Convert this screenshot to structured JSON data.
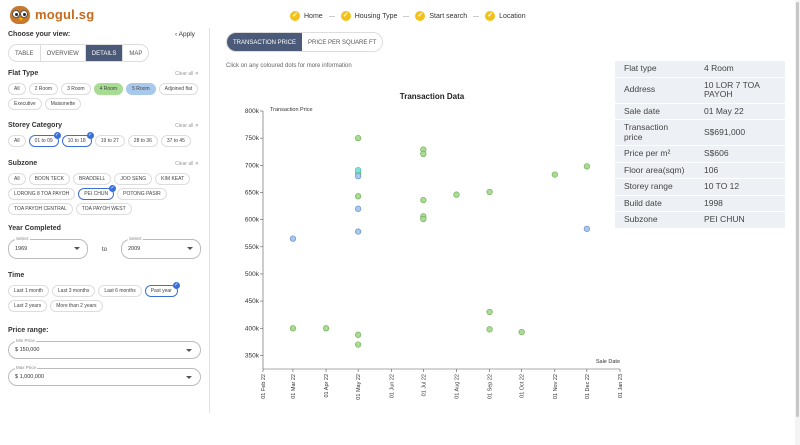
{
  "header": {
    "logo_text": "mogul.sg",
    "steps": [
      {
        "label": "Home"
      },
      {
        "label": "Housing Type"
      },
      {
        "label": "Start search"
      },
      {
        "label": "Location"
      }
    ]
  },
  "sidebar": {
    "title": "Choose your view:",
    "apply_label": "Apply",
    "view_tabs": [
      "TABLE",
      "OVERVIEW",
      "DETAILS",
      "MAP"
    ],
    "active_view": "DETAILS",
    "clear_label": "Clear all",
    "flat_type": {
      "title": "Flat Type",
      "chips": [
        {
          "label": "All",
          "state": ""
        },
        {
          "label": "2 Room",
          "state": ""
        },
        {
          "label": "3 Room",
          "state": ""
        },
        {
          "label": "4 Room",
          "state": "green"
        },
        {
          "label": "5 Room",
          "state": "blue"
        },
        {
          "label": "Adjoined flat",
          "state": ""
        },
        {
          "label": "Executive",
          "state": ""
        },
        {
          "label": "Maisonette",
          "state": ""
        }
      ]
    },
    "storey": {
      "title": "Storey Category",
      "chips": [
        {
          "label": "All",
          "state": ""
        },
        {
          "label": "01 to 09",
          "state": "sel"
        },
        {
          "label": "10 to 18",
          "state": "sel"
        },
        {
          "label": "19 to 27",
          "state": ""
        },
        {
          "label": "28 to 36",
          "state": ""
        },
        {
          "label": "37 to 45",
          "state": ""
        }
      ]
    },
    "subzone": {
      "title": "Subzone",
      "chips": [
        {
          "label": "All",
          "state": ""
        },
        {
          "label": "BOON TECK",
          "state": ""
        },
        {
          "label": "BRADDELL",
          "state": ""
        },
        {
          "label": "JOO SENG",
          "state": ""
        },
        {
          "label": "KIM KEAT",
          "state": ""
        },
        {
          "label": "LORONG 8 TOA PAYOH",
          "state": ""
        },
        {
          "label": "PEI CHUN",
          "state": "sel"
        },
        {
          "label": "POTONG PASIR",
          "state": ""
        },
        {
          "label": "TOA PAYOH CENTRAL",
          "state": ""
        },
        {
          "label": "TOA PAYOH WEST",
          "state": ""
        }
      ]
    },
    "year": {
      "title": "Year Completed",
      "select_label": "Select",
      "from": "1969",
      "to_word": "to",
      "to": "2009"
    },
    "time": {
      "title": "Time",
      "chips": [
        {
          "label": "Last 1 month",
          "state": ""
        },
        {
          "label": "Last 3 months",
          "state": ""
        },
        {
          "label": "Last 6 months",
          "state": ""
        },
        {
          "label": "Past year",
          "state": "sel"
        },
        {
          "label": "Last 2 years",
          "state": ""
        },
        {
          "label": "More than 2 years",
          "state": ""
        }
      ]
    },
    "price": {
      "title": "Price range:",
      "min_label": "Min Price",
      "min_value": "$ 150,000",
      "max_label": "Max Price",
      "max_value": "$ 1,000,000"
    }
  },
  "main": {
    "tabs": [
      "TRANSACTION PRICE",
      "PRICE PER SQUARE FT"
    ],
    "active_tab": "TRANSACTION PRICE",
    "hint": "Click on any coloured dots for more information"
  },
  "chart_data": {
    "type": "scatter",
    "title": "Transaction Data",
    "ylabel": "Transaction Price",
    "xlabel": "Sale Date",
    "ylim": [
      325000,
      800000
    ],
    "y_ticks": [
      "350k",
      "400k",
      "450k",
      "500k",
      "550k",
      "600k",
      "650k",
      "700k",
      "750k",
      "800k"
    ],
    "x_ticks": [
      "01 Feb 22",
      "01 Mar 22",
      "01 Apr 22",
      "01 May 22",
      "01 Jun 22",
      "01 Jul 22",
      "01 Aug 22",
      "01 Sep 22",
      "01 Oct 22",
      "01 Nov 22",
      "01 Dec 22",
      "01 Jan 23"
    ],
    "colors": {
      "green": "#a8dc92",
      "blue": "#a8c8ec",
      "teal": "#7ee0d6",
      "green_stroke": "#6aa84f",
      "blue_stroke": "#5a88c6"
    },
    "series": [
      {
        "name": "4 Room",
        "color": "#a8dc92",
        "points": [
          {
            "x": "2022-03-01",
            "y": 400000
          },
          {
            "x": "2022-04-01",
            "y": 400000
          },
          {
            "x": "2022-05-01",
            "y": 750000
          },
          {
            "x": "2022-05-01",
            "y": 685000
          },
          {
            "x": "2022-05-01",
            "y": 643000
          },
          {
            "x": "2022-05-01",
            "y": 388000
          },
          {
            "x": "2022-05-01",
            "y": 370000
          },
          {
            "x": "2022-07-01",
            "y": 729000
          },
          {
            "x": "2022-07-01",
            "y": 721000
          },
          {
            "x": "2022-07-01",
            "y": 636000
          },
          {
            "x": "2022-07-01",
            "y": 606000
          },
          {
            "x": "2022-07-01",
            "y": 601000
          },
          {
            "x": "2022-08-01",
            "y": 646000
          },
          {
            "x": "2022-09-01",
            "y": 651000
          },
          {
            "x": "2022-09-01",
            "y": 430000
          },
          {
            "x": "2022-09-01",
            "y": 398000
          },
          {
            "x": "2022-10-01",
            "y": 393000
          },
          {
            "x": "2022-11-01",
            "y": 683000
          },
          {
            "x": "2022-12-01",
            "y": 698000
          }
        ]
      },
      {
        "name": "5 Room",
        "color": "#a8c8ec",
        "points": [
          {
            "x": "2022-03-01",
            "y": 565000
          },
          {
            "x": "2022-05-01",
            "y": 680000
          },
          {
            "x": "2022-05-01",
            "y": 620000
          },
          {
            "x": "2022-05-01",
            "y": 578000
          },
          {
            "x": "2022-12-01",
            "y": 583000
          }
        ]
      },
      {
        "name": "",
        "color": "#7ee0d6",
        "points": [
          {
            "x": "2022-05-01",
            "y": 691000
          }
        ]
      }
    ]
  },
  "details": {
    "rows": [
      {
        "k": "Flat type",
        "v": "4 Room"
      },
      {
        "k": "Address",
        "v": "10 LOR 7 TOA PAYOH"
      },
      {
        "k": "Sale date",
        "v": "01 May 22"
      },
      {
        "k": "Transaction price",
        "v": "S$691,000"
      },
      {
        "k": "Price per m²",
        "v": "S$606"
      },
      {
        "k": "Floor area(sqm)",
        "v": "106"
      },
      {
        "k": "Storey range",
        "v": "10 TO 12"
      },
      {
        "k": "Build date",
        "v": "1998"
      },
      {
        "k": "Subzone",
        "v": "PEI CHUN"
      }
    ]
  }
}
